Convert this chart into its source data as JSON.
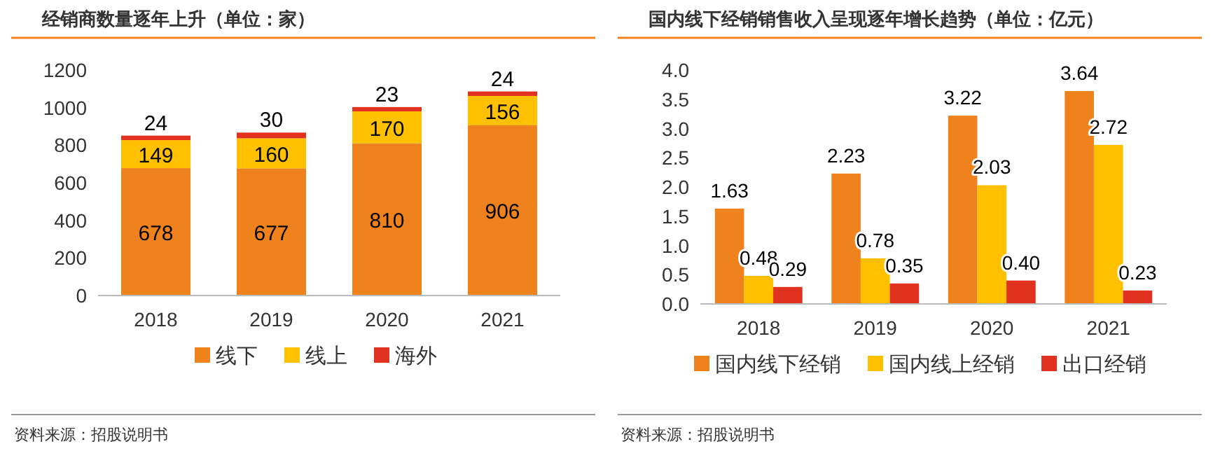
{
  "chart_data": [
    {
      "type": "bar",
      "title": "经销商数量逐年上升（单位：家）",
      "categories": [
        "2018",
        "2019",
        "2020",
        "2021"
      ],
      "stacked": true,
      "data_labels": true,
      "legend": "bottom",
      "ylim": [
        0,
        1200
      ],
      "yticks": [
        0,
        200,
        400,
        600,
        800,
        1000,
        1200
      ],
      "series": [
        {
          "name": "线下",
          "color": "#f0821e",
          "values": [
            678,
            677,
            810,
            906
          ]
        },
        {
          "name": "线上",
          "color": "#ffc000",
          "values": [
            149,
            160,
            170,
            156
          ]
        },
        {
          "name": "海外",
          "color": "#e0321e",
          "values": [
            24,
            30,
            23,
            24
          ]
        }
      ],
      "annotations": [
        "资料来源：招股说明书"
      ]
    },
    {
      "type": "bar",
      "title": "国内线下经销销售收入呈现逐年增长趋势（单位：亿元）",
      "categories": [
        "2018",
        "2019",
        "2020",
        "2021"
      ],
      "stacked": false,
      "legend": "bottom",
      "ylim": [
        0,
        4
      ],
      "yticks": [
        {
          "value": 0,
          "label": "0.0"
        },
        {
          "value": 0.5,
          "label": "0.5"
        },
        {
          "value": 1,
          "label": "1.0"
        },
        {
          "value": 1.5,
          "label": "1.5"
        },
        {
          "value": 2,
          "label": "2.0"
        },
        {
          "value": 2.5,
          "label": "2.5"
        },
        {
          "value": 3,
          "label": "3.0"
        },
        {
          "value": 3.5,
          "label": "3.5"
        },
        {
          "value": 4,
          "label": "4.0"
        }
      ],
      "series": [
        {
          "name": "国内线下经销",
          "color": "#f0821e",
          "values": [
            1.63,
            2.23,
            3.22,
            3.64
          ],
          "value_labels": [
            "1.63",
            "2.23",
            "3.22",
            "3.64"
          ]
        },
        {
          "name": "国内线上经销",
          "color": "#ffc000",
          "values": [
            0.48,
            0.78,
            2.03,
            2.72
          ],
          "value_labels": [
            "0.48",
            "0.78",
            "2.03",
            "2.72"
          ]
        },
        {
          "name": "出口经销",
          "color": "#e0321e",
          "values": [
            0.29,
            0.35,
            0.4,
            0.23
          ],
          "value_labels": [
            "0.29",
            "0.35",
            "0.40",
            "0.23"
          ]
        }
      ],
      "annotations": [
        "资料来源：招股说明书"
      ]
    }
  ]
}
